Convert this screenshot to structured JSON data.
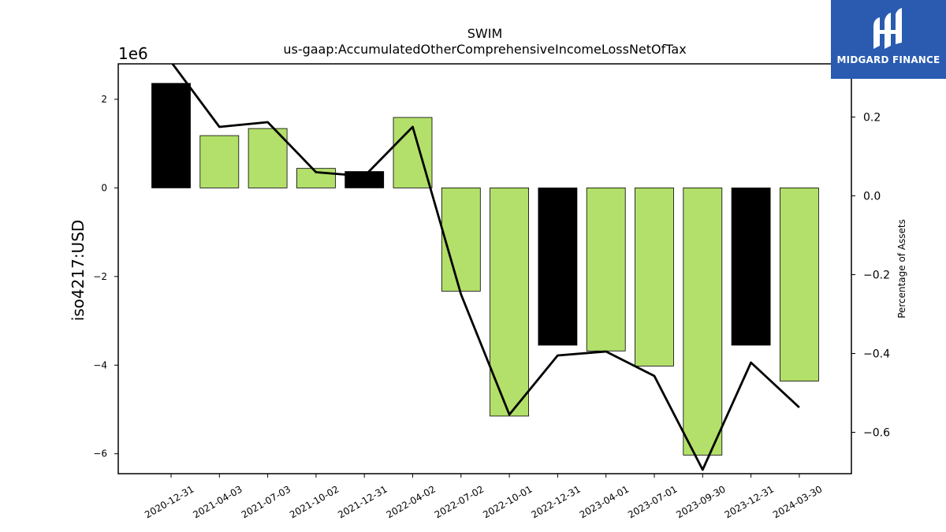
{
  "chart_data": {
    "type": "bar",
    "title": "SWIM",
    "subtitle": "us-gaap:AccumulatedOtherComprehensiveIncomeLossNetOfTax",
    "ylabel": "iso4217:USD",
    "y_offset_label": "1e6",
    "y2label": "Percentage of Assets",
    "categories": [
      "2020-12-31",
      "2021-04-03",
      "2021-07-03",
      "2021-10-02",
      "2021-12-31",
      "2022-04-02",
      "2022-07-02",
      "2022-10-01",
      "2022-12-31",
      "2023-04-01",
      "2023-07-01",
      "2023-09-30",
      "2023-12-31",
      "2024-03-30"
    ],
    "series": [
      {
        "axis": "left",
        "kind": "bar",
        "values": [
          2.36,
          1.18,
          1.34,
          0.44,
          0.37,
          1.59,
          -2.33,
          -5.15,
          -3.55,
          -3.68,
          -4.02,
          -6.03,
          -3.55,
          -4.36
        ],
        "colors": [
          "#000000",
          "#b3e06a",
          "#b3e06a",
          "#b3e06a",
          "#000000",
          "#b3e06a",
          "#b3e06a",
          "#b3e06a",
          "#000000",
          "#b3e06a",
          "#b3e06a",
          "#b3e06a",
          "#000000",
          "#b3e06a"
        ]
      },
      {
        "axis": "right",
        "kind": "line",
        "color": "#000000",
        "values": [
          0.34,
          0.175,
          0.187,
          0.06,
          0.05,
          0.175,
          -0.25,
          -0.555,
          -0.405,
          -0.395,
          -0.457,
          -0.695,
          -0.423,
          -0.537
        ]
      }
    ],
    "ylim": [
      -6.45,
      2.8
    ],
    "y_ticks": [
      -6,
      -4,
      -2,
      0,
      2
    ],
    "y2lim": [
      -0.705,
      0.335
    ],
    "y2_ticks": [
      -0.6,
      -0.4,
      -0.2,
      0.0,
      0.2
    ],
    "y2_tick_labels": [
      "−0.6",
      "−0.4",
      "−0.2",
      "0.0",
      "0.2"
    ],
    "grid": false,
    "colors": {
      "bar_green": "#b3e06a",
      "bar_black": "#000000",
      "line": "#000000"
    }
  },
  "logo": {
    "text": "MIDGARD FINANCE",
    "background": "#2a5bb0"
  }
}
